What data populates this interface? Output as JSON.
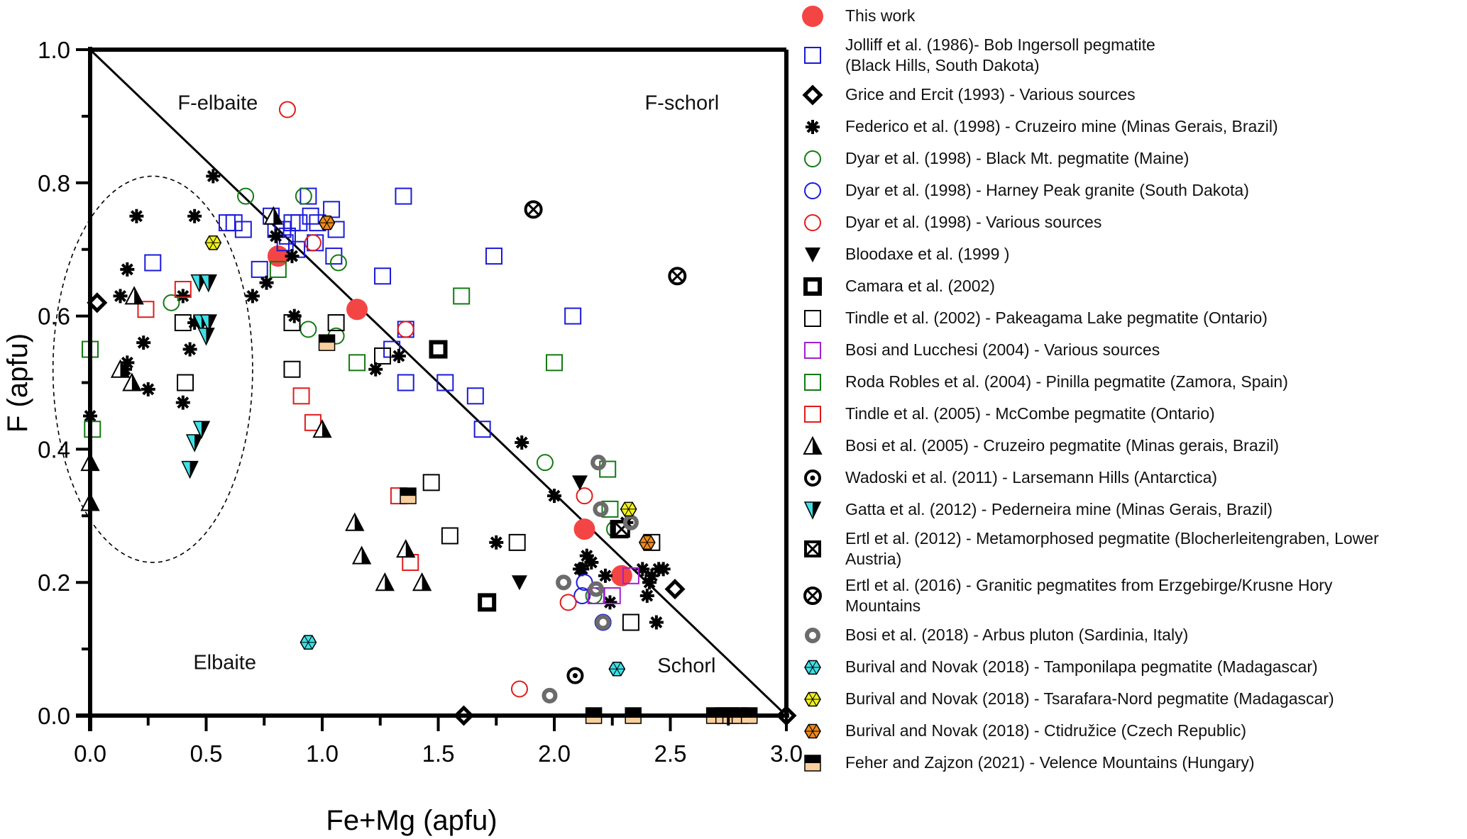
{
  "chart_data": {
    "type": "scatter",
    "title": "",
    "xlabel": "Fe+Mg (apfu)",
    "ylabel": "F (apfu)",
    "xlim": [
      0,
      3.0
    ],
    "ylim": [
      0,
      1.0
    ],
    "xticks": [
      "0.0",
      "0.5",
      "1.0",
      "1.5",
      "2.0",
      "2.5",
      "3.0"
    ],
    "yticks": [
      "0.0",
      "0.2",
      "0.4",
      "0.6",
      "0.8",
      "1.0"
    ],
    "grid": false,
    "legend_position": "right",
    "region_labels": [
      "F-elbaite",
      "F-schorl",
      "Elbaite",
      "Schorl"
    ],
    "boundary_line": {
      "from": [
        0,
        1.0
      ],
      "to": [
        3.0,
        0
      ]
    },
    "ellipse_annotation": {
      "center": [
        0.27,
        0.52
      ],
      "rx": 0.43,
      "ry": 0.29,
      "style": "dashed"
    },
    "series": [
      {
        "name": "This work",
        "marker": "filled-circle",
        "color": "#f44545",
        "points": [
          [
            0.81,
            0.69
          ],
          [
            1.15,
            0.61
          ],
          [
            2.13,
            0.28
          ],
          [
            2.29,
            0.21
          ]
        ]
      },
      {
        "name": "Jolliff et al. (1986)- Bob Ingersoll pegmatite\n(Black Hills, South Dakota)",
        "marker": "open-square",
        "color": "#1a1adb",
        "points": [
          [
            0.27,
            0.68
          ],
          [
            0.59,
            0.74
          ],
          [
            0.62,
            0.74
          ],
          [
            0.66,
            0.73
          ],
          [
            0.73,
            0.67
          ],
          [
            0.78,
            0.75
          ],
          [
            0.8,
            0.73
          ],
          [
            0.83,
            0.73
          ],
          [
            0.85,
            0.72
          ],
          [
            0.87,
            0.74
          ],
          [
            0.9,
            0.74
          ],
          [
            0.94,
            0.78
          ],
          [
            0.95,
            0.75
          ],
          [
            0.98,
            0.74
          ],
          [
            1.04,
            0.76
          ],
          [
            1.06,
            0.73
          ],
          [
            1.05,
            0.69
          ],
          [
            0.97,
            0.71
          ],
          [
            0.84,
            0.71
          ],
          [
            0.89,
            0.7
          ],
          [
            1.35,
            0.78
          ],
          [
            1.74,
            0.69
          ],
          [
            1.26,
            0.66
          ],
          [
            2.08,
            0.6
          ],
          [
            1.3,
            0.55
          ],
          [
            1.36,
            0.58
          ],
          [
            1.36,
            0.5
          ],
          [
            1.53,
            0.5
          ],
          [
            1.66,
            0.48
          ],
          [
            1.69,
            0.43
          ]
        ]
      },
      {
        "name": "Grice and Ercit (1993) - Various sources",
        "marker": "open-diamond",
        "color": "#000000",
        "points": [
          [
            0.03,
            0.62
          ],
          [
            2.52,
            0.19
          ],
          [
            1.61,
            0.0
          ],
          [
            3.0,
            0.0
          ]
        ]
      },
      {
        "name": "Federico et al. (1998) - Cruzeiro mine (Minas Gerais, Brazil)",
        "marker": "asterisk",
        "color": "#000000",
        "points": [
          [
            0.53,
            0.81
          ],
          [
            0.2,
            0.75
          ],
          [
            0.45,
            0.75
          ],
          [
            0.16,
            0.67
          ],
          [
            0.13,
            0.63
          ],
          [
            0.4,
            0.63
          ],
          [
            0.45,
            0.59
          ],
          [
            0.23,
            0.56
          ],
          [
            0.43,
            0.55
          ],
          [
            0.16,
            0.53
          ],
          [
            0.15,
            0.52
          ],
          [
            0.25,
            0.49
          ],
          [
            0.4,
            0.47
          ],
          [
            0.0,
            0.45
          ],
          [
            0.7,
            0.63
          ],
          [
            0.76,
            0.65
          ],
          [
            0.87,
            0.69
          ],
          [
            0.8,
            0.72
          ],
          [
            0.88,
            0.6
          ],
          [
            1.23,
            0.52
          ],
          [
            1.33,
            0.54
          ],
          [
            1.86,
            0.41
          ],
          [
            2.0,
            0.33
          ],
          [
            1.75,
            0.26
          ],
          [
            2.11,
            0.22
          ],
          [
            2.14,
            0.24
          ],
          [
            2.16,
            0.23
          ],
          [
            2.12,
            0.22
          ],
          [
            2.22,
            0.21
          ],
          [
            2.24,
            0.17
          ],
          [
            2.38,
            0.22
          ],
          [
            2.41,
            0.2
          ],
          [
            2.42,
            0.21
          ],
          [
            2.47,
            0.22
          ],
          [
            2.45,
            0.22
          ],
          [
            2.4,
            0.18
          ],
          [
            2.44,
            0.14
          ],
          [
            2.31,
            0.29
          ]
        ]
      },
      {
        "name": "Dyar et al. (1998) - Black Mt. pegmatite (Maine)",
        "marker": "open-circle",
        "color": "#127a12",
        "points": [
          [
            0.67,
            0.78
          ],
          [
            0.92,
            0.78
          ],
          [
            0.35,
            0.62
          ],
          [
            0.94,
            0.58
          ],
          [
            1.06,
            0.57
          ],
          [
            1.07,
            0.68
          ],
          [
            1.96,
            0.38
          ],
          [
            2.26,
            0.28
          ],
          [
            2.17,
            0.18
          ]
        ]
      },
      {
        "name": "Dyar et al. (1998) - Harney Peak granite (South Dakota)",
        "marker": "open-circle",
        "color": "#1a1adb",
        "points": [
          [
            2.13,
            0.2
          ],
          [
            2.12,
            0.18
          ],
          [
            2.21,
            0.14
          ]
        ]
      },
      {
        "name": "Dyar et al. (1998) - Various sources",
        "marker": "open-circle",
        "color": "#e21b1b",
        "points": [
          [
            0.85,
            0.91
          ],
          [
            0.96,
            0.71
          ],
          [
            1.36,
            0.58
          ],
          [
            2.13,
            0.33
          ],
          [
            2.06,
            0.17
          ],
          [
            1.85,
            0.04
          ]
        ]
      },
      {
        "name": "Bloodaxe et al. (1999 )",
        "marker": "filled-triangle-down",
        "color": "#000000",
        "points": [
          [
            2.11,
            0.35
          ],
          [
            1.85,
            0.2
          ]
        ]
      },
      {
        "name": "Camara et al. (2002)",
        "marker": "thick-square",
        "color": "#000000",
        "points": [
          [
            1.5,
            0.55
          ],
          [
            1.71,
            0.17
          ],
          [
            2.28,
            0.28
          ]
        ]
      },
      {
        "name": "Tindle et al. (2002) - Pakeagama Lake pegmatite (Ontario)",
        "marker": "open-square",
        "color": "#000000",
        "points": [
          [
            0.4,
            0.59
          ],
          [
            0.41,
            0.5
          ],
          [
            0.87,
            0.59
          ],
          [
            1.06,
            0.59
          ],
          [
            0.87,
            0.52
          ],
          [
            1.26,
            0.54
          ],
          [
            1.47,
            0.35
          ],
          [
            1.55,
            0.27
          ],
          [
            1.84,
            0.26
          ],
          [
            2.42,
            0.26
          ],
          [
            2.33,
            0.14
          ]
        ]
      },
      {
        "name": "Bosi and Lucchesi (2004) - Various sources",
        "marker": "open-square",
        "color": "#a020d0",
        "points": [
          [
            2.18,
            0.18
          ],
          [
            2.25,
            0.18
          ],
          [
            2.33,
            0.21
          ]
        ]
      },
      {
        "name": "Roda Robles et al. (2004) - Pinilla pegmatite (Zamora, Spain)",
        "marker": "open-square",
        "color": "#127a12",
        "points": [
          [
            0.0,
            0.55
          ],
          [
            0.01,
            0.43
          ],
          [
            0.81,
            0.67
          ],
          [
            1.6,
            0.63
          ],
          [
            2.0,
            0.53
          ],
          [
            1.15,
            0.53
          ],
          [
            2.23,
            0.37
          ],
          [
            2.24,
            0.31
          ]
        ]
      },
      {
        "name": "Tindle et al. (2005) - McCombe pegmatite (Ontario)",
        "marker": "open-square",
        "color": "#e21b1b",
        "points": [
          [
            0.4,
            0.64
          ],
          [
            0.24,
            0.61
          ],
          [
            0.91,
            0.48
          ],
          [
            0.96,
            0.44
          ],
          [
            1.33,
            0.33
          ],
          [
            1.38,
            0.23
          ]
        ]
      },
      {
        "name": "Bosi et al. (2005) - Cruzeiro pegmatite (Minas gerais, Brazil)",
        "marker": "half-filled-triangle",
        "color": "#000000",
        "points": [
          [
            0.0,
            0.38
          ],
          [
            0.0,
            0.32
          ],
          [
            0.19,
            0.63
          ],
          [
            0.13,
            0.52
          ],
          [
            0.18,
            0.5
          ],
          [
            0.79,
            0.75
          ],
          [
            1.0,
            0.43
          ],
          [
            1.14,
            0.29
          ],
          [
            1.17,
            0.24
          ],
          [
            1.27,
            0.2
          ],
          [
            1.36,
            0.25
          ],
          [
            1.43,
            0.2
          ]
        ]
      },
      {
        "name": "Wadoski et al. (2011) - Larsemann Hills (Antarctica)",
        "marker": "dot-circle",
        "color": "#000000",
        "points": [
          [
            2.09,
            0.06
          ]
        ]
      },
      {
        "name": "Gatta et al. (2012) - Pederneira mine (Minas Gerais, Brazil)",
        "marker": "half-cyan-triangle-down",
        "color": "#3ee0e6",
        "points": [
          [
            0.47,
            0.65
          ],
          [
            0.51,
            0.65
          ],
          [
            0.48,
            0.59
          ],
          [
            0.51,
            0.59
          ],
          [
            0.5,
            0.57
          ],
          [
            0.45,
            0.41
          ],
          [
            0.48,
            0.43
          ],
          [
            0.43,
            0.37
          ]
        ]
      },
      {
        "name": "Ertl et al. (2012) - Metamorphosed pegmatite (Blocherleitengraben, Lower\nAustria)",
        "marker": "crossed-square",
        "color": "#000000",
        "points": [
          [
            2.29,
            0.28
          ]
        ]
      },
      {
        "name": "Ertl et al. (2016) - Granitic pegmatites from Erzgebirge/Krusne Hory\nMountains",
        "marker": "crossed-circle",
        "color": "#000000",
        "points": [
          [
            1.91,
            0.76
          ],
          [
            2.53,
            0.66
          ]
        ]
      },
      {
        "name": "Bosi et al. (2018) - Arbus pluton (Sardinia, Italy)",
        "marker": "gray-ring",
        "color": "#6b6b6b",
        "points": [
          [
            2.19,
            0.38
          ],
          [
            2.2,
            0.31
          ],
          [
            2.33,
            0.29
          ],
          [
            2.04,
            0.2
          ],
          [
            2.18,
            0.19
          ],
          [
            2.21,
            0.14
          ],
          [
            1.98,
            0.03
          ]
        ]
      },
      {
        "name": "Burival and Novak (2018) - Tamponilapa pegmatite (Madagascar)",
        "marker": "hexagon",
        "color": "#3ee0e6",
        "points": [
          [
            0.94,
            0.11
          ],
          [
            2.27,
            0.07
          ]
        ]
      },
      {
        "name": "Burival and Novak (2018) - Tsarafara-Nord pegmatite (Madagascar)",
        "marker": "hexagon",
        "color": "#f2f21a",
        "points": [
          [
            0.53,
            0.71
          ],
          [
            2.32,
            0.31
          ]
        ]
      },
      {
        "name": "Burival and Novak (2018) - Ctidružice (Czech Republic)",
        "marker": "hexagon",
        "color": "#f0891a",
        "points": [
          [
            1.02,
            0.74
          ],
          [
            2.4,
            0.26
          ]
        ]
      },
      {
        "name": "Feher and Zajzon (2021) - Velence Mountains (Hungary)",
        "marker": "half-black-peach-square",
        "color": "#f9cf9f",
        "points": [
          [
            1.02,
            0.56
          ],
          [
            1.37,
            0.33
          ],
          [
            2.17,
            0.0
          ],
          [
            2.34,
            0.0
          ],
          [
            2.69,
            0.0
          ],
          [
            2.73,
            0.0
          ],
          [
            2.76,
            0.0
          ],
          [
            2.8,
            0.0
          ],
          [
            2.84,
            0.0
          ]
        ]
      }
    ]
  }
}
